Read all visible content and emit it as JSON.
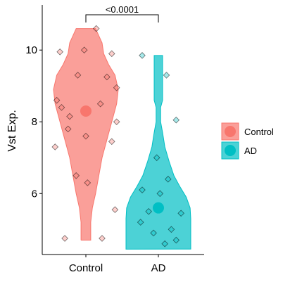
{
  "chart_data": {
    "type": "violin",
    "ylabel": "Vst Exp.",
    "xlabel": "",
    "ylim": [
      4.3,
      11.2
    ],
    "y_ticks": [
      6,
      8,
      10
    ],
    "y_tick_labels": [
      "6",
      "8",
      "10"
    ],
    "categories": [
      "Control",
      "AD"
    ],
    "legend_position": "right",
    "grid": false,
    "colors": {
      "Control": "#F8766D",
      "AD": "#00BFC4"
    },
    "annotation": {
      "text": "<0.0001",
      "between": [
        "Control",
        "AD"
      ]
    },
    "series": [
      {
        "name": "Control",
        "median": 8.3,
        "min": 4.7,
        "max": 10.6,
        "density_profile": [
          [
            4.7,
            0.15
          ],
          [
            5.2,
            0.15
          ],
          [
            5.6,
            0.2
          ],
          [
            6.0,
            0.3
          ],
          [
            6.5,
            0.4
          ],
          [
            7.0,
            0.5
          ],
          [
            7.5,
            0.65
          ],
          [
            8.0,
            0.8
          ],
          [
            8.5,
            0.95
          ],
          [
            8.9,
            1.0
          ],
          [
            9.3,
            0.9
          ],
          [
            9.6,
            0.7
          ],
          [
            9.9,
            0.55
          ],
          [
            10.2,
            0.5
          ],
          [
            10.4,
            0.4
          ],
          [
            10.6,
            0.3
          ]
        ],
        "points": [
          {
            "y": 9.95,
            "j": -0.8
          },
          {
            "y": 9.9,
            "j": 0.8
          },
          {
            "y": 10.6,
            "j": 0.32
          },
          {
            "y": 10.0,
            "j": -0.05
          },
          {
            "y": 9.25,
            "j": 0.65
          },
          {
            "y": 9.3,
            "j": -0.25
          },
          {
            "y": 8.95,
            "j": 0.95
          },
          {
            "y": 8.6,
            "j": -0.9
          },
          {
            "y": 8.4,
            "j": -0.75
          },
          {
            "y": 8.5,
            "j": 0.45
          },
          {
            "y": 8.15,
            "j": -0.5
          },
          {
            "y": 8.0,
            "j": 0.95
          },
          {
            "y": 7.8,
            "j": -0.55
          },
          {
            "y": 7.6,
            "j": 0.0
          },
          {
            "y": 7.45,
            "j": 0.8
          },
          {
            "y": 7.3,
            "j": -0.95
          },
          {
            "y": 6.5,
            "j": -0.3
          },
          {
            "y": 6.3,
            "j": 0.05
          },
          {
            "y": 5.55,
            "j": 0.9
          },
          {
            "y": 4.75,
            "j": -0.65
          },
          {
            "y": 4.75,
            "j": 0.5
          }
        ]
      },
      {
        "name": "AD",
        "median": 5.6,
        "min": 4.45,
        "max": 9.85,
        "density_profile": [
          [
            4.45,
            1.0
          ],
          [
            4.7,
            1.0
          ],
          [
            5.0,
            1.0
          ],
          [
            5.3,
            1.0
          ],
          [
            5.6,
            0.98
          ],
          [
            5.9,
            0.86
          ],
          [
            6.2,
            0.66
          ],
          [
            6.5,
            0.48
          ],
          [
            6.9,
            0.33
          ],
          [
            7.3,
            0.2
          ],
          [
            7.7,
            0.13
          ],
          [
            8.0,
            0.07
          ],
          [
            8.4,
            0.07
          ],
          [
            8.6,
            0.13
          ],
          [
            9.0,
            0.13
          ],
          [
            9.5,
            0.13
          ],
          [
            9.85,
            0.13
          ]
        ],
        "points": [
          {
            "y": 9.85,
            "j": -0.5
          },
          {
            "y": 9.3,
            "j": 0.25
          },
          {
            "y": 8.05,
            "j": 0.55
          },
          {
            "y": 7.0,
            "j": -0.05
          },
          {
            "y": 6.4,
            "j": 0.3
          },
          {
            "y": 6.1,
            "j": -0.5
          },
          {
            "y": 6.0,
            "j": 0.05
          },
          {
            "y": 5.5,
            "j": -0.3
          },
          {
            "y": 5.45,
            "j": 0.7
          },
          {
            "y": 5.2,
            "j": -0.55
          },
          {
            "y": 5.0,
            "j": 0.4
          },
          {
            "y": 4.9,
            "j": -0.15
          },
          {
            "y": 4.7,
            "j": 0.55
          },
          {
            "y": 4.6,
            "j": 0.2
          }
        ]
      }
    ]
  }
}
